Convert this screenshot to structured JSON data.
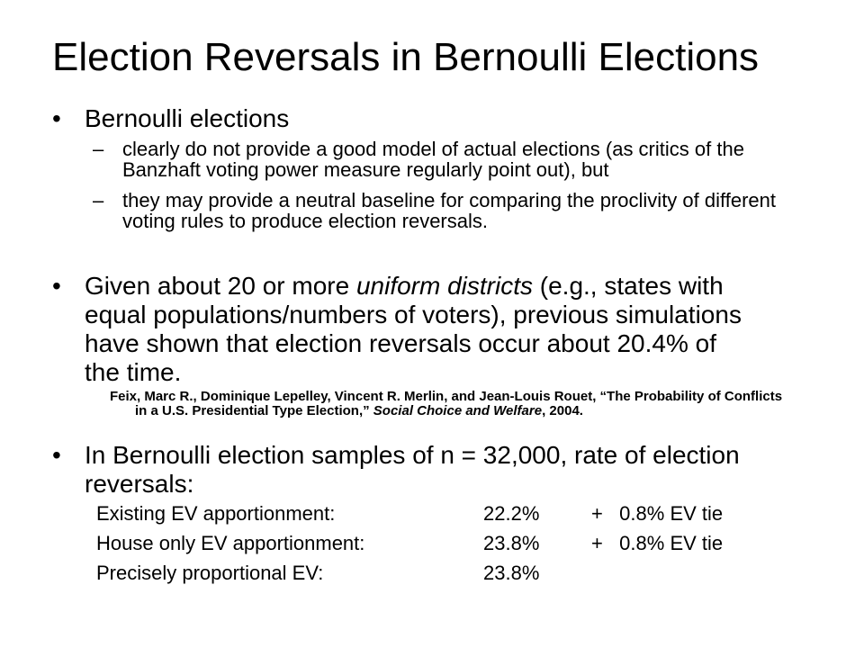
{
  "title": "Election Reversals in Bernoulli Elections",
  "bullets": [
    {
      "marker": "•",
      "text": "Bernoulli elections",
      "subs": [
        {
          "marker": "–",
          "text": "clearly do not provide a good model of actual elections (as critics of the Banzhaft voting power measure regularly point out), but"
        },
        {
          "marker": "–",
          "text": "they may provide a neutral baseline for comparing the proclivity of different voting rules to produce election reversals."
        }
      ]
    },
    {
      "marker": "•",
      "text_before": "Given about 20 or more ",
      "text_italic": "uniform districts",
      "text_after": " (e.g., states with equal populations/numbers of voters), previous simulations have shown that election reversals occur about 20.4% of the time.",
      "citation": {
        "before": "Feix, Marc R., Dominique Lepelley, Vincent R. Merlin, and Jean-Louis Rouet, “The Probability of Conflicts in a U.S. Presidential Type Election,” ",
        "journal": "Social Choice and Welfare",
        "after": ", 2004."
      }
    },
    {
      "marker": "•",
      "text": "In Bernoulli election samples of n = 32,000, rate of election reversals:"
    }
  ],
  "table": [
    {
      "label": "Existing EV apportionment:",
      "rate": "22.2%",
      "tie": "+   0.8% EV tie"
    },
    {
      "label": "House only EV apportionment:",
      "rate": "23.8%",
      "tie": "+   0.8% EV tie"
    },
    {
      "label": "Precisely proportional EV:",
      "rate": "23.8%",
      "tie": ""
    }
  ]
}
